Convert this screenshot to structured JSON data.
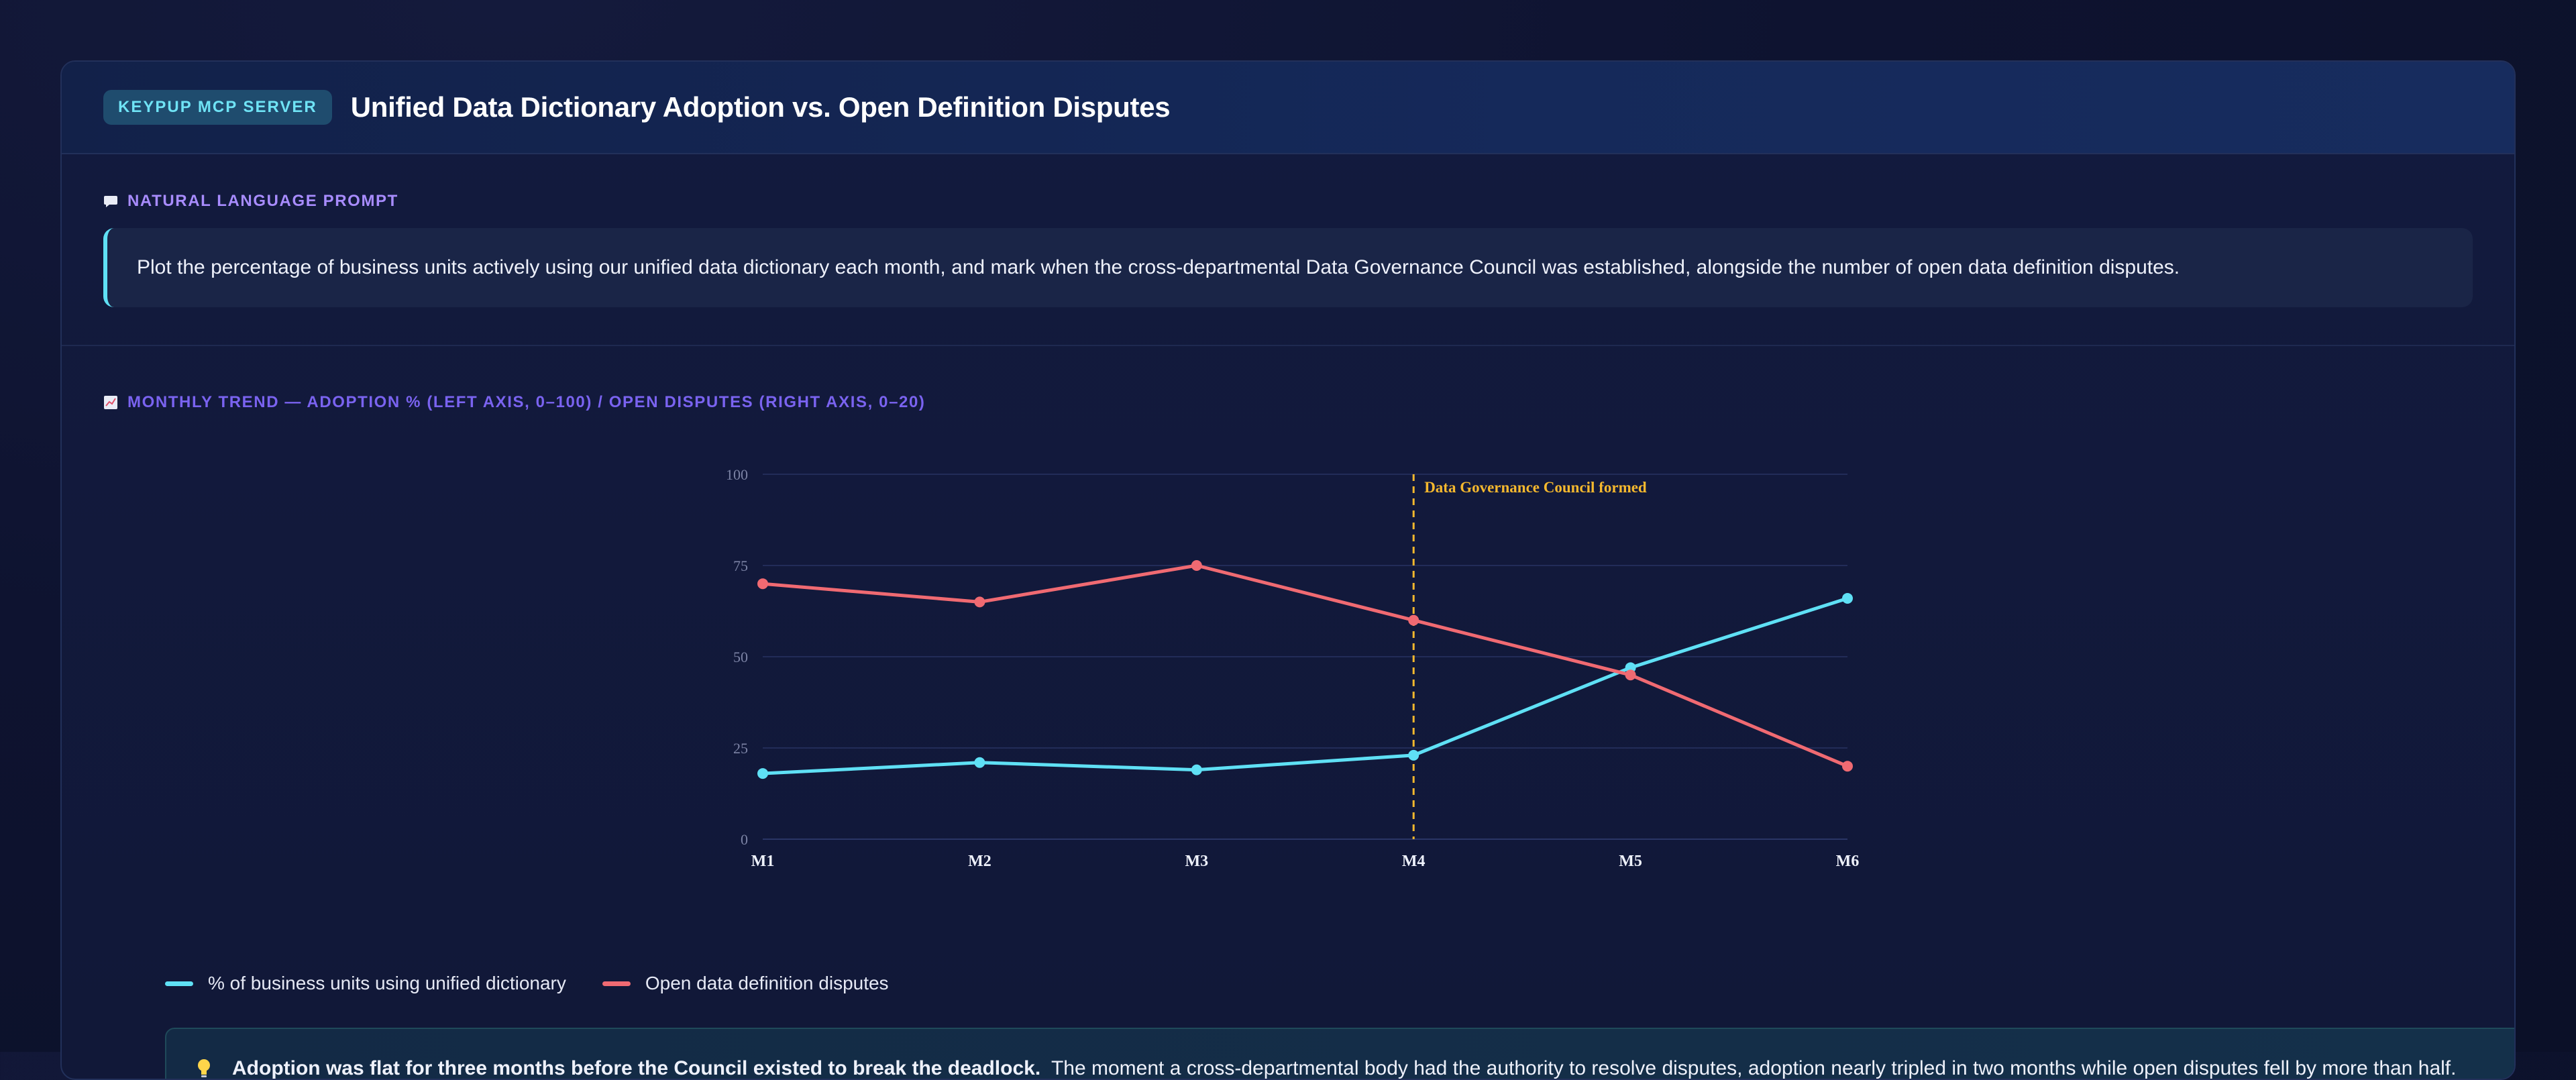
{
  "header": {
    "badge": "KEYPUP MCP SERVER",
    "title": "Unified Data Dictionary Adoption vs. Open Definition Disputes"
  },
  "prompt": {
    "label": "NATURAL LANGUAGE PROMPT",
    "text": "Plot the percentage of business units actively using our unified data dictionary each month, and mark when the cross-departmental Data Governance Council was established, alongside the number of open data definition disputes."
  },
  "chart_section": {
    "label": "MONTHLY TREND — ADOPTION % (LEFT AXIS, 0–100) / OPEN DISPUTES (RIGHT AXIS, 0–20)"
  },
  "chart_data": {
    "type": "line",
    "categories": [
      "M1",
      "M2",
      "M3",
      "M4",
      "M5",
      "M6"
    ],
    "ylim": [
      0,
      100
    ],
    "y_ticks": [
      "0",
      "25",
      "50",
      "75",
      "100"
    ],
    "grid": true,
    "series": [
      {
        "name": "% of business units using unified dictionary",
        "color": "#5fe0f5",
        "values": [
          18,
          21,
          19,
          23,
          47,
          66
        ]
      },
      {
        "name": "Open data definition disputes",
        "color": "#f06a72",
        "values": [
          70,
          65,
          75,
          60,
          45,
          20
        ]
      }
    ],
    "annotation": {
      "at": "M4",
      "label": "Data Governance Council formed",
      "color": "#f5b82e"
    }
  },
  "insight": {
    "bold": "Adoption was flat for three months before the Council existed to break the deadlock.",
    "text": "The moment a cross-departmental body had the authority to resolve disputes, adoption nearly tripled in two months while open disputes fell by more than half."
  }
}
